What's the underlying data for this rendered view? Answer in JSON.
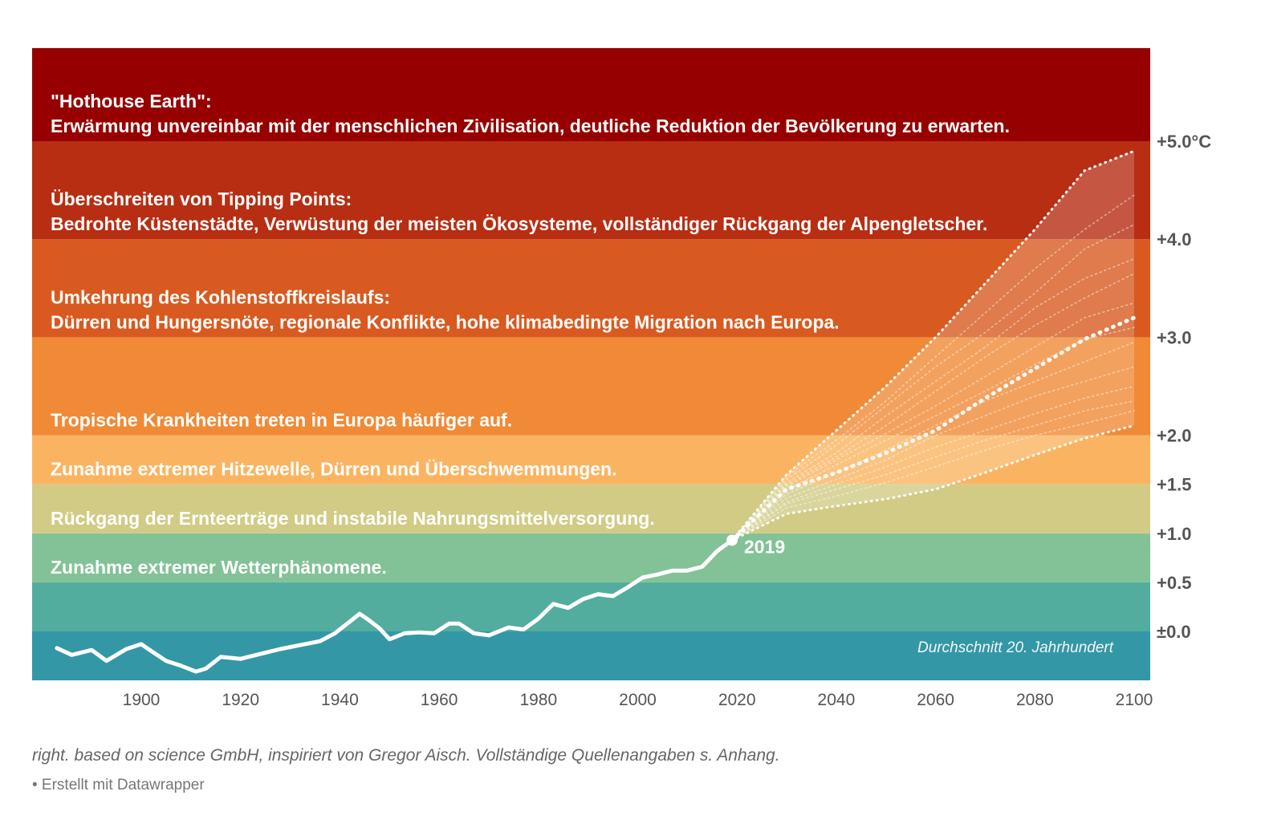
{
  "chart_data": {
    "type": "line",
    "title": "",
    "xlabel": "",
    "ylabel": "",
    "xlim": [
      1876,
      2103
    ],
    "ylim": [
      -0.5,
      5.95
    ],
    "x_ticks": [
      1900,
      1920,
      1940,
      1960,
      1980,
      2000,
      2020,
      2040,
      2060,
      2080,
      2100
    ],
    "y_ticks": [
      {
        "value": 0.0,
        "label": "±0.0"
      },
      {
        "value": 0.5,
        "label": "+0.5"
      },
      {
        "value": 1.0,
        "label": "+1.0"
      },
      {
        "value": 1.5,
        "label": "+1.5"
      },
      {
        "value": 2.0,
        "label": "+2.0"
      },
      {
        "value": 3.0,
        "label": "+3.0"
      },
      {
        "value": 4.0,
        "label": "+4.0"
      },
      {
        "value": 5.0,
        "label": "+5.0°C"
      }
    ],
    "bands": [
      {
        "from": -0.5,
        "to": 0.0,
        "color": "#3397a6",
        "lines": []
      },
      {
        "from": 0.0,
        "to": 0.5,
        "color": "#52ad9f",
        "lines": []
      },
      {
        "from": 0.5,
        "to": 1.0,
        "color": "#82c296",
        "lines": [
          "Zunahme extremer Wetterphänomene."
        ]
      },
      {
        "from": 1.0,
        "to": 1.5,
        "color": "#d1cb85",
        "lines": [
          "Rückgang der Ernteerträge und instabile Nahrungsmittelversorgung."
        ]
      },
      {
        "from": 1.5,
        "to": 2.0,
        "color": "#fab461",
        "lines": [
          "Zunahme extremer Hitzewelle, Dürren und Überschwemmungen."
        ]
      },
      {
        "from": 2.0,
        "to": 3.0,
        "color": "#f08a36",
        "lines": [
          "Tropische Krankheiten treten in Europa häufiger auf."
        ]
      },
      {
        "from": 3.0,
        "to": 4.0,
        "color": "#d85a20",
        "lines": [
          "Umkehrung des Kohlenstoffkreislaufs:",
          "Dürren und Hungersnöte, regionale Konflikte, hohe klimabedingte Migration nach Europa."
        ]
      },
      {
        "from": 4.0,
        "to": 5.0,
        "color": "#b72e13",
        "lines": [
          "Überschreiten von Tipping Points:",
          "Bedrohte Küstenstädte, Verwüstung der meisten Ökosysteme, vollständiger Rückgang der Alpengletscher."
        ]
      },
      {
        "from": 5.0,
        "to": 5.95,
        "color": "#960000",
        "lines": [
          "\"Hothouse Earth\":",
          "Erwärmung unvereinbar mit der menschlichen Zivilisation, deutliche Reduktion der Bevölkerung zu erwarten."
        ]
      }
    ],
    "baseline_note": "Durchschnitt 20. Jahrhundert",
    "historical": {
      "x": [
        1883,
        1886,
        1890,
        1893,
        1897,
        1900,
        1902,
        1905,
        1908,
        1911,
        1913,
        1916,
        1920,
        1924,
        1928,
        1932,
        1936,
        1939,
        1942,
        1944,
        1946,
        1948,
        1950,
        1953,
        1956,
        1959,
        1962,
        1964,
        1967,
        1970,
        1974,
        1977,
        1980,
        1983,
        1986,
        1989,
        1992,
        1995,
        1998,
        2001,
        2004,
        2007,
        2010,
        2013,
        2016,
        2019
      ],
      "y": [
        -0.17,
        -0.24,
        -0.19,
        -0.3,
        -0.18,
        -0.13,
        -0.2,
        -0.3,
        -0.35,
        -0.41,
        -0.38,
        -0.26,
        -0.28,
        -0.23,
        -0.18,
        -0.14,
        -0.1,
        -0.02,
        0.1,
        0.18,
        0.11,
        0.03,
        -0.08,
        -0.02,
        -0.01,
        -0.02,
        0.08,
        0.08,
        -0.02,
        -0.04,
        0.04,
        0.02,
        0.13,
        0.28,
        0.24,
        0.33,
        0.38,
        0.36,
        0.45,
        0.55,
        0.58,
        0.62,
        0.62,
        0.66,
        0.82,
        0.93
      ]
    },
    "marker": {
      "x": 2019,
      "y": 0.93,
      "label": "2019"
    },
    "projections": {
      "x": [
        2019,
        2030,
        2040,
        2050,
        2060,
        2070,
        2080,
        2090,
        2100
      ],
      "upper": [
        0.93,
        1.6,
        2.05,
        2.5,
        3.0,
        3.55,
        4.1,
        4.7,
        4.9
      ],
      "median": [
        0.93,
        1.45,
        1.62,
        1.82,
        2.05,
        2.38,
        2.68,
        2.98,
        3.2
      ],
      "lower": [
        0.93,
        1.2,
        1.28,
        1.35,
        1.45,
        1.62,
        1.8,
        1.97,
        2.1
      ],
      "ensemble": [
        [
          0.93,
          1.58,
          1.95,
          2.35,
          2.8,
          3.25,
          3.7,
          4.1,
          4.45
        ],
        [
          0.93,
          1.55,
          1.9,
          2.3,
          2.7,
          3.05,
          3.45,
          3.9,
          4.15
        ],
        [
          0.93,
          1.52,
          1.82,
          2.2,
          2.55,
          2.9,
          3.3,
          3.6,
          3.8
        ],
        [
          0.93,
          1.5,
          1.78,
          2.1,
          2.45,
          2.8,
          3.12,
          3.4,
          3.65
        ],
        [
          0.93,
          1.48,
          1.75,
          2.02,
          2.3,
          2.6,
          2.9,
          3.2,
          3.35
        ],
        [
          0.93,
          1.44,
          1.7,
          1.95,
          2.2,
          2.45,
          2.72,
          2.98,
          3.1
        ],
        [
          0.93,
          1.4,
          1.62,
          1.85,
          2.1,
          2.35,
          2.55,
          2.75,
          2.95
        ],
        [
          0.93,
          1.36,
          1.55,
          1.75,
          2.0,
          2.2,
          2.4,
          2.55,
          2.7
        ],
        [
          0.93,
          1.32,
          1.5,
          1.68,
          1.88,
          2.05,
          2.22,
          2.38,
          2.5
        ],
        [
          0.93,
          1.3,
          1.45,
          1.6,
          1.78,
          1.95,
          2.1,
          2.25,
          2.35
        ],
        [
          0.93,
          1.26,
          1.38,
          1.52,
          1.68,
          1.85,
          2.0,
          2.12,
          2.25
        ]
      ]
    }
  },
  "footer": {
    "source": "right. based on science GmbH, inspiriert von Gregor Aisch. Vollständige Quellenangaben s. Anhang.",
    "credit": "• Erstellt mit Datawrapper"
  }
}
